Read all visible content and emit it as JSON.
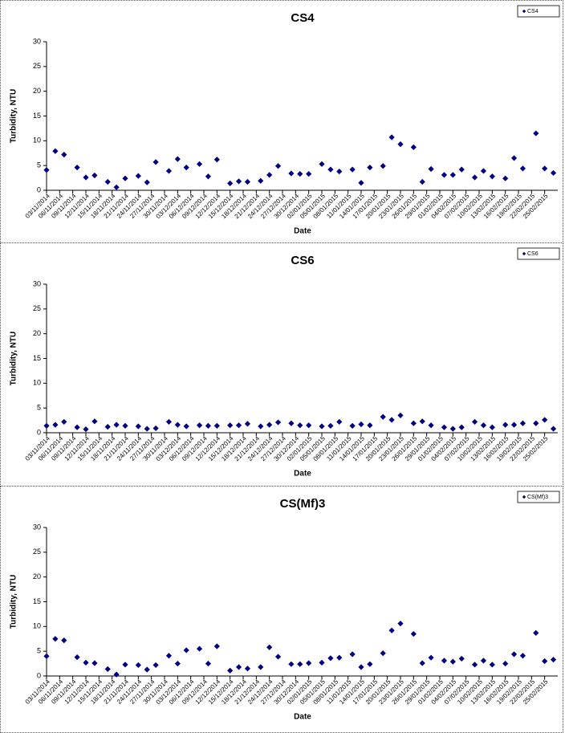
{
  "chart_data": [
    {
      "type": "scatter",
      "title": "CS4",
      "xlabel": "Date",
      "ylabel": "Turbidity, NTU",
      "series": [
        {
          "name": "CS4",
          "color": "#000080",
          "x": [
            "03/11/2014",
            "05/11/2014",
            "07/11/2014",
            "10/11/2014",
            "12/11/2014",
            "14/11/2014",
            "17/11/2014",
            "19/11/2014",
            "21/11/2014",
            "24/11/2014",
            "26/11/2014",
            "28/11/2014",
            "01/12/2014",
            "03/12/2014",
            "05/12/2014",
            "08/12/2014",
            "10/12/2014",
            "12/12/2014",
            "15/12/2014",
            "17/12/2014",
            "19/12/2014",
            "22/12/2014",
            "24/12/2014",
            "26/12/2014",
            "29/12/2014",
            "31/12/2014",
            "02/01/2015",
            "05/01/2015",
            "07/01/2015",
            "09/01/2015",
            "12/01/2015",
            "14/01/2015",
            "16/01/2015",
            "19/01/2015",
            "21/01/2015",
            "23/01/2015",
            "26/01/2015",
            "28/01/2015",
            "30/01/2015",
            "02/02/2015",
            "04/02/2015",
            "06/02/2015",
            "09/02/2015",
            "11/02/2015",
            "13/02/2015",
            "16/02/2015",
            "18/02/2015",
            "20/02/2015",
            "23/02/2015",
            "25/02/2015",
            "27/02/2015"
          ],
          "values": [
            4.1,
            7.9,
            7.2,
            4.6,
            2.6,
            3.0,
            1.7,
            0.6,
            2.4,
            2.9,
            1.6,
            5.7,
            3.9,
            6.3,
            4.6,
            5.3,
            2.8,
            6.2,
            1.4,
            1.8,
            1.7,
            1.9,
            3.1,
            4.9,
            3.4,
            3.3,
            3.3,
            5.3,
            4.2,
            3.8,
            4.2,
            1.5,
            4.6,
            4.9,
            10.7,
            9.3,
            8.7,
            1.7,
            4.3,
            3.1,
            3.1,
            4.2,
            2.6,
            3.9,
            2.8,
            2.4,
            6.5,
            4.4,
            11.5,
            4.4,
            3.5
          ]
        }
      ],
      "xlim": [
        "03/11/2014",
        "28/02/2015"
      ],
      "xticks": [
        "03/11/2014",
        "06/11/2014",
        "09/11/2014",
        "12/11/2014",
        "15/11/2014",
        "18/11/2014",
        "21/11/2014",
        "24/11/2014",
        "27/11/2014",
        "30/11/2014",
        "03/12/2014",
        "06/12/2014",
        "09/12/2014",
        "12/12/2014",
        "15/12/2014",
        "18/12/2014",
        "21/12/2014",
        "24/12/2014",
        "27/12/2014",
        "30/12/2014",
        "02/01/2015",
        "05/01/2015",
        "08/01/2015",
        "11/01/2015",
        "14/01/2015",
        "17/01/2015",
        "20/01/2015",
        "23/01/2015",
        "26/01/2015",
        "29/01/2015",
        "01/02/2015",
        "04/02/2015",
        "07/02/2015",
        "10/02/2015",
        "13/02/2015",
        "16/02/2015",
        "19/02/2015",
        "22/02/2015",
        "25/02/2015"
      ],
      "ylim": [
        0,
        30
      ],
      "yticks": [
        0,
        5,
        10,
        15,
        20,
        25,
        30
      ],
      "legend": "top-right"
    },
    {
      "type": "scatter",
      "title": "CS6",
      "xlabel": "Date",
      "ylabel": "Turbidity, NTU",
      "series": [
        {
          "name": "CS6",
          "color": "#000080",
          "x": [
            "03/11/2014",
            "05/11/2014",
            "07/11/2014",
            "10/11/2014",
            "12/11/2014",
            "14/11/2014",
            "17/11/2014",
            "19/11/2014",
            "21/11/2014",
            "24/11/2014",
            "26/11/2014",
            "28/11/2014",
            "01/12/2014",
            "03/12/2014",
            "05/12/2014",
            "08/12/2014",
            "10/12/2014",
            "12/12/2014",
            "15/12/2014",
            "17/12/2014",
            "19/12/2014",
            "22/12/2014",
            "24/12/2014",
            "26/12/2014",
            "29/12/2014",
            "31/12/2014",
            "02/01/2015",
            "05/01/2015",
            "07/01/2015",
            "09/01/2015",
            "12/01/2015",
            "14/01/2015",
            "16/01/2015",
            "19/01/2015",
            "21/01/2015",
            "23/01/2015",
            "26/01/2015",
            "28/01/2015",
            "30/01/2015",
            "02/02/2015",
            "04/02/2015",
            "06/02/2015",
            "09/02/2015",
            "11/02/2015",
            "13/02/2015",
            "16/02/2015",
            "18/02/2015",
            "20/02/2015",
            "23/02/2015",
            "25/02/2015",
            "27/02/2015"
          ],
          "values": [
            1.4,
            1.6,
            2.2,
            1.1,
            0.7,
            2.3,
            1.2,
            1.6,
            1.4,
            1.3,
            0.8,
            0.9,
            2.2,
            1.6,
            1.3,
            1.5,
            1.4,
            1.4,
            1.5,
            1.5,
            1.8,
            1.3,
            1.6,
            2.1,
            1.9,
            1.5,
            1.5,
            1.3,
            1.4,
            2.2,
            1.4,
            1.7,
            1.5,
            3.2,
            2.6,
            3.5,
            1.9,
            2.3,
            1.5,
            1.1,
            0.8,
            1.1,
            2.2,
            1.5,
            1.1,
            1.6,
            1.6,
            1.9,
            1.9,
            2.6,
            0.8
          ]
        }
      ],
      "xlim": [
        "03/11/2014",
        "28/02/2015"
      ],
      "xticks": [
        "03/11/2014",
        "06/11/2014",
        "09/11/2014",
        "12/11/2014",
        "15/11/2014",
        "18/11/2014",
        "21/11/2014",
        "24/11/2014",
        "27/11/2014",
        "30/11/2014",
        "03/12/2014",
        "06/12/2014",
        "09/12/2014",
        "12/12/2014",
        "15/12/2014",
        "18/12/2014",
        "21/12/2014",
        "24/12/2014",
        "27/12/2014",
        "30/12/2014",
        "02/01/2015",
        "05/01/2015",
        "08/01/2015",
        "11/01/2015",
        "14/01/2015",
        "17/01/2015",
        "20/01/2015",
        "23/01/2015",
        "26/01/2015",
        "29/01/2015",
        "01/02/2015",
        "04/02/2015",
        "07/02/2015",
        "10/02/2015",
        "13/02/2015",
        "16/02/2015",
        "19/02/2015",
        "22/02/2015",
        "25/02/2015"
      ],
      "ylim": [
        0,
        30
      ],
      "yticks": [
        0,
        5,
        10,
        15,
        20,
        25,
        30
      ],
      "legend": "top-right"
    },
    {
      "type": "scatter",
      "title": "CS(Mf)3",
      "xlabel": "Date",
      "ylabel": "Turbidity, NTU",
      "series": [
        {
          "name": "CS(Mf)3",
          "color": "#000080",
          "x": [
            "03/11/2014",
            "05/11/2014",
            "07/11/2014",
            "10/11/2014",
            "12/11/2014",
            "14/11/2014",
            "17/11/2014",
            "19/11/2014",
            "21/11/2014",
            "24/11/2014",
            "26/11/2014",
            "28/11/2014",
            "01/12/2014",
            "03/12/2014",
            "05/12/2014",
            "08/12/2014",
            "10/12/2014",
            "12/12/2014",
            "15/12/2014",
            "17/12/2014",
            "19/12/2014",
            "22/12/2014",
            "24/12/2014",
            "26/12/2014",
            "29/12/2014",
            "31/12/2014",
            "02/01/2015",
            "05/01/2015",
            "07/01/2015",
            "09/01/2015",
            "12/01/2015",
            "14/01/2015",
            "16/01/2015",
            "19/01/2015",
            "21/01/2015",
            "23/01/2015",
            "26/01/2015",
            "28/01/2015",
            "30/01/2015",
            "02/02/2015",
            "04/02/2015",
            "06/02/2015",
            "09/02/2015",
            "11/02/2015",
            "13/02/2015",
            "16/02/2015",
            "18/02/2015",
            "20/02/2015",
            "23/02/2015",
            "25/02/2015",
            "27/02/2015"
          ],
          "values": [
            4.0,
            7.5,
            7.2,
            3.8,
            2.7,
            2.6,
            1.4,
            0.3,
            2.3,
            2.2,
            1.3,
            2.2,
            4.1,
            2.5,
            5.2,
            5.5,
            2.5,
            6.0,
            1.1,
            1.8,
            1.5,
            1.8,
            5.8,
            3.9,
            2.4,
            2.4,
            2.6,
            2.7,
            3.6,
            3.7,
            4.4,
            1.8,
            2.4,
            4.6,
            9.2,
            10.6,
            8.5,
            2.6,
            3.7,
            3.1,
            2.9,
            3.5,
            2.3,
            3.1,
            2.3,
            2.5,
            4.4,
            4.1,
            8.7,
            3.0,
            3.3
          ]
        }
      ],
      "xlim": [
        "03/11/2014",
        "28/02/2015"
      ],
      "xticks": [
        "03/11/2014",
        "06/11/2014",
        "09/11/2014",
        "12/11/2014",
        "15/11/2014",
        "18/11/2014",
        "21/11/2014",
        "24/11/2014",
        "27/11/2014",
        "30/11/2014",
        "03/12/2014",
        "06/12/2014",
        "09/12/2014",
        "12/12/2014",
        "15/12/2014",
        "18/12/2014",
        "21/12/2014",
        "24/12/2014",
        "27/12/2014",
        "30/12/2014",
        "02/01/2015",
        "05/01/2015",
        "08/01/2015",
        "11/01/2015",
        "14/01/2015",
        "17/01/2015",
        "20/01/2015",
        "23/01/2015",
        "26/01/2015",
        "29/01/2015",
        "01/02/2015",
        "04/02/2015",
        "07/02/2015",
        "10/02/2015",
        "13/02/2015",
        "16/02/2015",
        "19/02/2015",
        "22/02/2015",
        "25/02/2015"
      ],
      "ylim": [
        0,
        30
      ],
      "yticks": [
        0,
        5,
        10,
        15,
        20,
        25,
        30
      ],
      "legend": "top-right"
    }
  ]
}
